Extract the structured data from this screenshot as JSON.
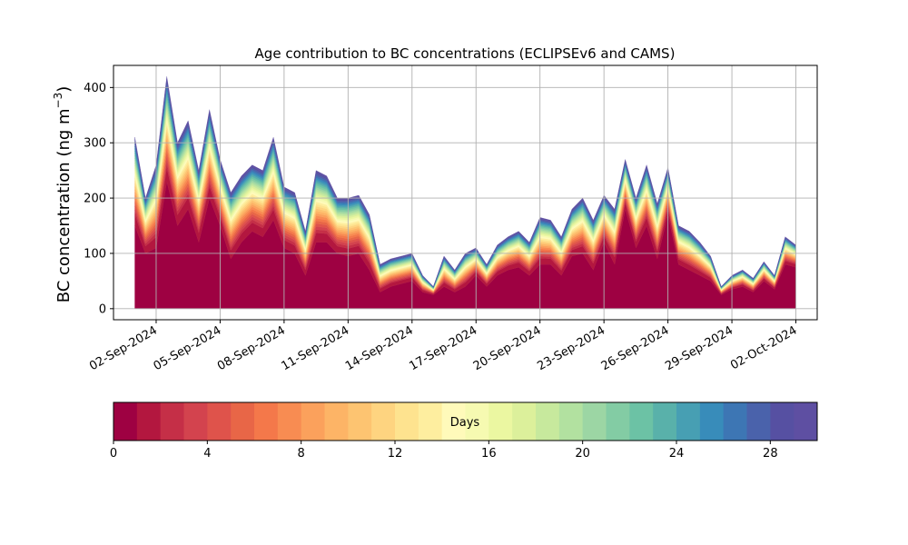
{
  "chart_data": {
    "type": "area",
    "title": "Age contribution to BC concentrations (ECLIPSEv6 and CAMS)",
    "ylabel_main": "BC concentration (ng m",
    "ylabel_exp": "−3",
    "ylabel_close": ")",
    "ylim": [
      -20,
      440
    ],
    "yticks": [
      0,
      100,
      200,
      300,
      400
    ],
    "x_start": "2024-08-31",
    "x_end": "2024-10-03",
    "xticks": [
      {
        "date": "2024-09-02",
        "label": "02-Sep-2024"
      },
      {
        "date": "2024-09-05",
        "label": "05-Sep-2024"
      },
      {
        "date": "2024-09-08",
        "label": "08-Sep-2024"
      },
      {
        "date": "2024-09-11",
        "label": "11-Sep-2024"
      },
      {
        "date": "2024-09-14",
        "label": "14-Sep-2024"
      },
      {
        "date": "2024-09-17",
        "label": "17-Sep-2024"
      },
      {
        "date": "2024-09-20",
        "label": "20-Sep-2024"
      },
      {
        "date": "2024-09-23",
        "label": "23-Sep-2024"
      },
      {
        "date": "2024-09-26",
        "label": "26-Sep-2024"
      },
      {
        "date": "2024-09-29",
        "label": "29-Sep-2024"
      },
      {
        "date": "2024-10-02",
        "label": "02-Oct-2024"
      }
    ],
    "grid": true,
    "series_note": "stacked contributions by age (days 0–30)",
    "times": [
      "2024-09-01",
      "2024-09-01T12",
      "2024-09-02",
      "2024-09-02T12",
      "2024-09-03",
      "2024-09-03T12",
      "2024-09-04",
      "2024-09-04T12",
      "2024-09-05",
      "2024-09-05T12",
      "2024-09-06",
      "2024-09-06T12",
      "2024-09-07",
      "2024-09-07T12",
      "2024-09-08",
      "2024-09-08T12",
      "2024-09-09",
      "2024-09-09T12",
      "2024-09-10",
      "2024-09-10T12",
      "2024-09-11",
      "2024-09-11T12",
      "2024-09-12",
      "2024-09-12T12",
      "2024-09-13",
      "2024-09-13T12",
      "2024-09-14",
      "2024-09-14T12",
      "2024-09-15",
      "2024-09-15T12",
      "2024-09-16",
      "2024-09-16T12",
      "2024-09-17",
      "2024-09-17T12",
      "2024-09-18",
      "2024-09-18T12",
      "2024-09-19",
      "2024-09-19T12",
      "2024-09-20",
      "2024-09-20T12",
      "2024-09-21",
      "2024-09-21T12",
      "2024-09-22",
      "2024-09-22T12",
      "2024-09-23",
      "2024-09-23T12",
      "2024-09-24",
      "2024-09-24T12",
      "2024-09-25",
      "2024-09-25T12",
      "2024-09-26",
      "2024-09-26T12",
      "2024-09-27",
      "2024-09-27T12",
      "2024-09-28",
      "2024-09-28T12",
      "2024-09-29",
      "2024-09-29T12",
      "2024-09-30",
      "2024-09-30T12",
      "2024-10-01",
      "2024-10-01T12",
      "2024-10-02"
    ],
    "total": [
      310,
      200,
      260,
      420,
      300,
      340,
      250,
      360,
      270,
      210,
      240,
      260,
      250,
      310,
      220,
      210,
      140,
      250,
      240,
      200,
      200,
      205,
      170,
      80,
      90,
      95,
      100,
      60,
      40,
      95,
      70,
      100,
      110,
      80,
      115,
      130,
      140,
      120,
      165,
      160,
      130,
      180,
      200,
      160,
      205,
      180,
      270,
      200,
      260,
      190,
      255,
      150,
      140,
      120,
      95,
      40,
      60,
      70,
      55,
      85,
      60,
      130,
      115
    ],
    "day0": [
      150,
      100,
      110,
      230,
      150,
      180,
      120,
      200,
      150,
      90,
      120,
      140,
      130,
      160,
      110,
      100,
      60,
      120,
      120,
      100,
      95,
      100,
      70,
      30,
      40,
      45,
      50,
      30,
      25,
      40,
      30,
      40,
      60,
      40,
      60,
      70,
      75,
      60,
      80,
      80,
      60,
      95,
      100,
      70,
      120,
      80,
      180,
      110,
      150,
      90,
      170,
      80,
      70,
      60,
      50,
      25,
      35,
      40,
      30,
      50,
      35,
      80,
      75
    ],
    "colorbar_label": "Days",
    "colorbar_ticks": [
      0,
      4,
      8,
      12,
      16,
      20,
      24,
      28
    ],
    "colorbar_range": [
      0,
      30
    ],
    "colors": [
      "#9e0142",
      "#b3173f",
      "#c52f47",
      "#d3434e",
      "#df534b",
      "#e86647",
      "#f4784a",
      "#f88c52",
      "#fba15c",
      "#fdb466",
      "#fdc471",
      "#fed480",
      "#fee38f",
      "#feee9f",
      "#fffaba",
      "#f6fab1",
      "#ebf7a1",
      "#dcf09b",
      "#c7e99d",
      "#b2e1a0",
      "#9cd6a4",
      "#83cca4",
      "#6cc2a5",
      "#59b1aa",
      "#479fb3",
      "#388cba",
      "#3d76b4",
      "#4a62ab",
      "#5650a2",
      "#5e4fa2"
    ]
  }
}
